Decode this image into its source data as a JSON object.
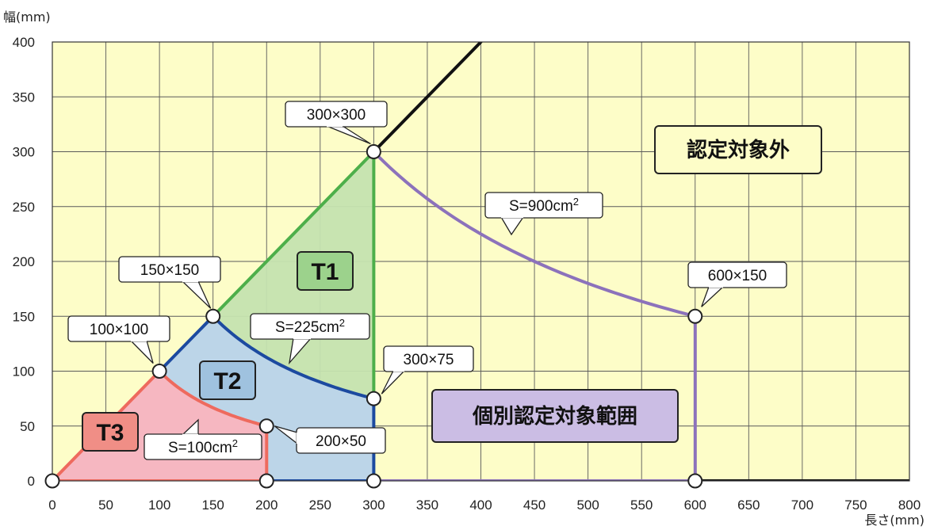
{
  "chart_data": {
    "type": "line",
    "xlabel": "長さ(mm)",
    "ylabel": "幅(mm)",
    "xlim": [
      0,
      800
    ],
    "ylim": [
      0,
      400
    ],
    "x_ticks": [
      "0",
      "50",
      "100",
      "150",
      "200",
      "250",
      "300",
      "350",
      "400",
      "450",
      "500",
      "550",
      "600",
      "650",
      "700",
      "750",
      "800"
    ],
    "y_ticks": [
      "0",
      "50",
      "100",
      "150",
      "200",
      "250",
      "300",
      "350",
      "400"
    ],
    "grid": true,
    "colors": {
      "plot_bg": "#fdfdc8",
      "grid": "#5a5a5a",
      "t1_line": "#4daf4a",
      "t1_fill": "#c5e3b0",
      "t2_line": "#1c4aa0",
      "t2_fill": "#bcd5e8",
      "t3_line": "#ee6a5e",
      "t3_fill": "#f6b7c1",
      "individual_line": "#8c72bb",
      "outside_line": "#111111"
    },
    "regions": [
      {
        "label": "T1",
        "fill": "#9cd28c"
      },
      {
        "label": "T2",
        "fill": "#9fc2df"
      },
      {
        "label": "T3",
        "fill": "#f08e86"
      },
      {
        "label": "個別認定対象範囲",
        "fill": "#cbbde4"
      },
      {
        "label": "認定対象外",
        "fill": "#fdfdc8"
      }
    ],
    "key_points": [
      {
        "label": "300×300",
        "x": 300,
        "y": 300
      },
      {
        "label": "150×150",
        "x": 150,
        "y": 150
      },
      {
        "label": "100×100",
        "x": 100,
        "y": 100
      },
      {
        "label": "300×75",
        "x": 300,
        "y": 75
      },
      {
        "label": "200×50",
        "x": 200,
        "y": 50
      },
      {
        "label": "600×150",
        "x": 600,
        "y": 150
      }
    ],
    "extra_points": [
      {
        "x": 0,
        "y": 0
      },
      {
        "x": 200,
        "y": 0
      },
      {
        "x": 300,
        "y": 0
      },
      {
        "x": 600,
        "y": 0
      }
    ],
    "area_curves": [
      {
        "label": "S=100cm2",
        "base": "S=100cm",
        "sup": "2",
        "area_mm2": 10000
      },
      {
        "label": "S=225cm2",
        "base": "S=225cm",
        "sup": "2",
        "area_mm2": 22500
      },
      {
        "label": "S=900cm2",
        "base": "S=900cm",
        "sup": "2",
        "area_mm2": 90000
      }
    ],
    "series": [
      {
        "key": "outside",
        "points": [
          [
            300,
            300
          ],
          [
            400,
            400
          ]
        ]
      },
      {
        "key": "t1_diag",
        "points": [
          [
            150,
            150
          ],
          [
            300,
            300
          ]
        ]
      },
      {
        "key": "t1_vert",
        "points": [
          [
            300,
            75
          ],
          [
            300,
            300
          ]
        ]
      },
      {
        "key": "t2_diag",
        "points": [
          [
            100,
            100
          ],
          [
            150,
            150
          ]
        ]
      },
      {
        "key": "t2_vert",
        "points": [
          [
            300,
            0
          ],
          [
            300,
            75
          ]
        ]
      },
      {
        "key": "t2_base",
        "points": [
          [
            200,
            0
          ],
          [
            300,
            0
          ]
        ]
      },
      {
        "key": "t3_diag",
        "points": [
          [
            0,
            0
          ],
          [
            100,
            100
          ]
        ]
      },
      {
        "key": "t3_vert",
        "points": [
          [
            200,
            0
          ],
          [
            200,
            50
          ]
        ]
      },
      {
        "key": "t3_base",
        "points": [
          [
            0,
            0
          ],
          [
            200,
            0
          ]
        ]
      },
      {
        "key": "ind_vert",
        "points": [
          [
            600,
            0
          ],
          [
            600,
            150
          ]
        ]
      },
      {
        "key": "ind_base",
        "points": [
          [
            300,
            0
          ],
          [
            600,
            0
          ]
        ]
      },
      {
        "key": "base_right",
        "points": [
          [
            600,
            0
          ],
          [
            800,
            0
          ]
        ]
      }
    ]
  }
}
